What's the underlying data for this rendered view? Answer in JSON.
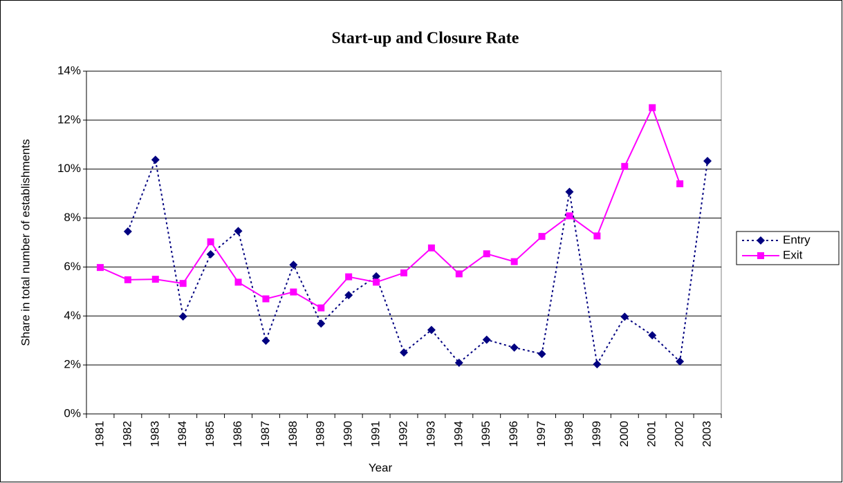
{
  "chart_data": {
    "type": "line",
    "title": "Start-up and Closure Rate",
    "x_label": "Year",
    "y_label": "Share in total number of establishments",
    "categories": [
      "1981",
      "1982",
      "1983",
      "1984",
      "1985",
      "1986",
      "1987",
      "1988",
      "1989",
      "1990",
      "1991",
      "1992",
      "1993",
      "1994",
      "1995",
      "1996",
      "1997",
      "1998",
      "1999",
      "2000",
      "2001",
      "2002",
      "2003"
    ],
    "series": [
      {
        "name": "Entry",
        "color": "#000080",
        "dash": "dotted",
        "marker": "diamond",
        "values": [
          null,
          7.45,
          10.38,
          3.98,
          6.52,
          7.47,
          2.99,
          6.09,
          3.69,
          4.85,
          5.62,
          2.51,
          3.43,
          2.09,
          3.03,
          2.71,
          2.45,
          9.07,
          2.03,
          3.97,
          3.21,
          2.14,
          10.33
        ]
      },
      {
        "name": "Exit",
        "color": "#ff00ff",
        "dash": "solid",
        "marker": "square",
        "values": [
          5.98,
          5.48,
          5.5,
          5.33,
          7.03,
          5.38,
          4.7,
          4.98,
          4.33,
          5.6,
          5.38,
          5.76,
          6.78,
          5.72,
          6.54,
          6.22,
          7.25,
          8.09,
          7.27,
          10.11,
          12.51,
          9.4,
          null
        ]
      }
    ],
    "ylim": [
      0,
      14
    ],
    "yticks": [
      {
        "value": 0,
        "label": "0%"
      },
      {
        "value": 2,
        "label": "2%"
      },
      {
        "value": 4,
        "label": "4%"
      },
      {
        "value": 6,
        "label": "6%"
      },
      {
        "value": 8,
        "label": "8%"
      },
      {
        "value": 10,
        "label": "10%"
      },
      {
        "value": 12,
        "label": "12%"
      },
      {
        "value": 14,
        "label": "14%"
      }
    ],
    "grid": true,
    "legend": "right"
  }
}
